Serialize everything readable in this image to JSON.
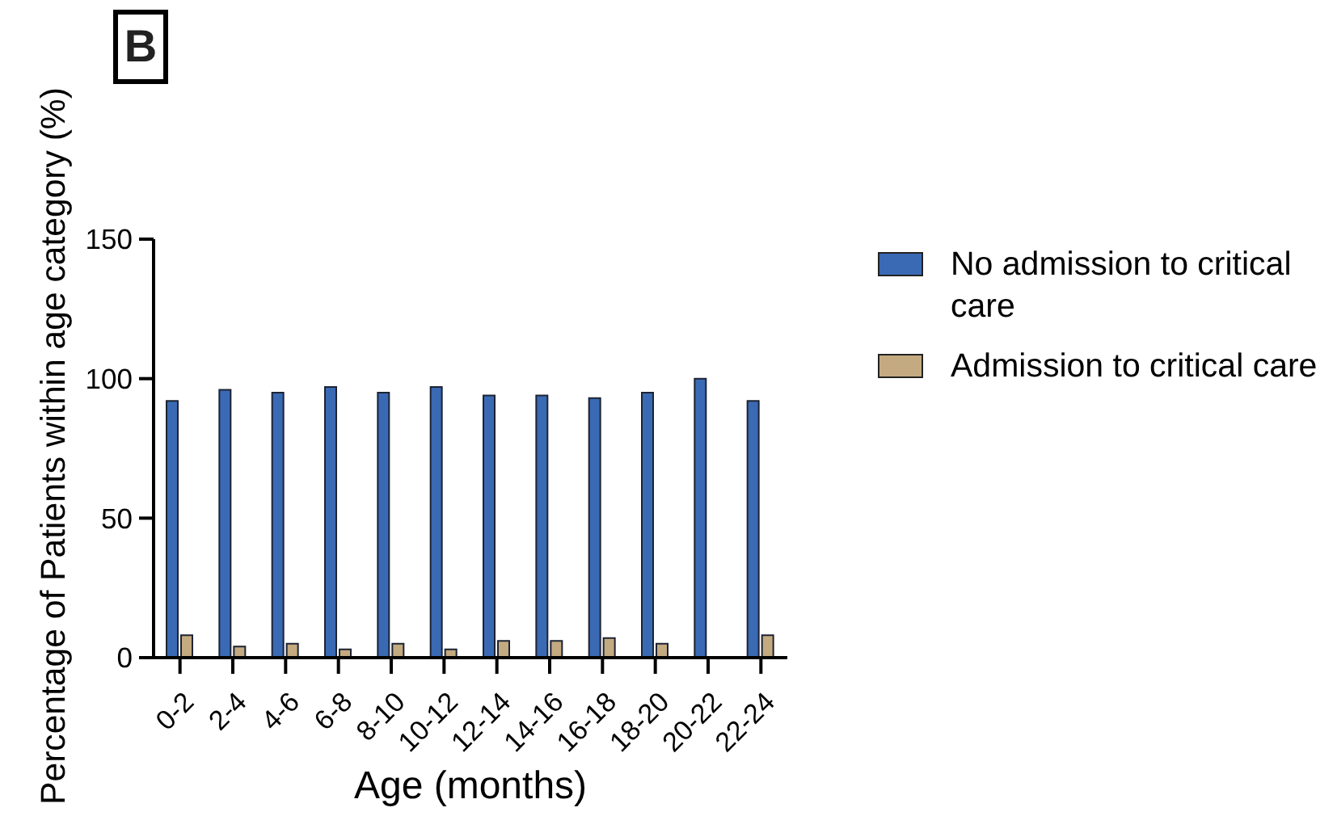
{
  "chart_data": {
    "type": "bar",
    "title": "B",
    "xlabel": "Age (months)",
    "ylabel": "Percentage of Patients within age category (%)",
    "categories": [
      "0-2",
      "2-4",
      "4-6",
      "6-8",
      "8-10",
      "10-12",
      "12-14",
      "14-16",
      "16-18",
      "18-20",
      "20-22",
      "22-24"
    ],
    "series": [
      {
        "name": "No admission to critical care",
        "color": "#3a6ab4",
        "values": [
          92,
          96,
          95,
          97,
          95,
          97,
          94,
          94,
          93,
          95,
          100,
          92
        ]
      },
      {
        "name": "Admission to critical care",
        "color": "#c4aa80",
        "values": [
          8,
          4,
          5,
          3,
          5,
          3,
          6,
          6,
          7,
          5,
          0,
          8
        ]
      }
    ],
    "ylim": [
      0,
      150
    ],
    "yticks": [
      0,
      50,
      100,
      150
    ],
    "grid": false,
    "legend": "top right"
  }
}
